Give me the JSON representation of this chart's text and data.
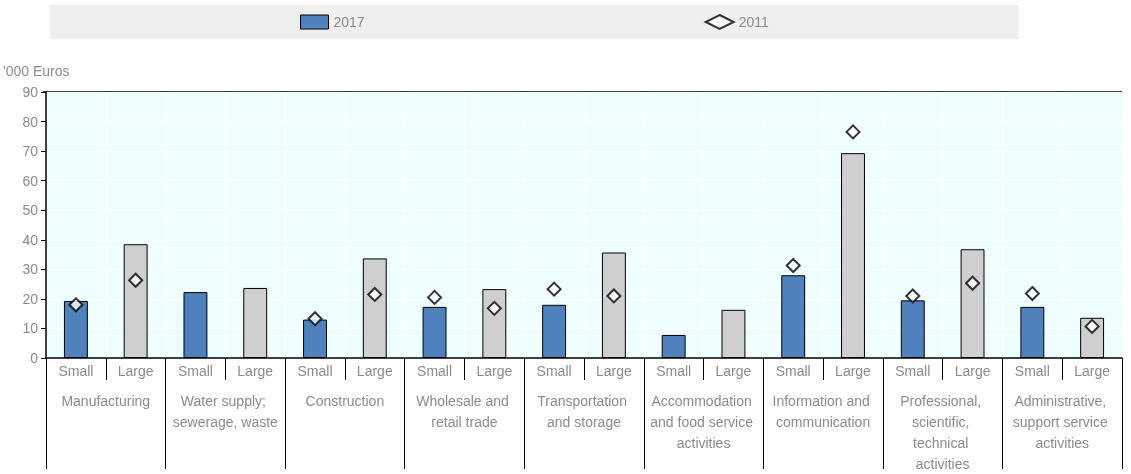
{
  "chart_data": {
    "type": "bar",
    "ylabel": "'000 Euros",
    "categories": [
      "Small",
      "Large",
      "Small",
      "Large",
      "Small",
      "Large",
      "Small",
      "Large",
      "Small",
      "Large",
      "Small",
      "Large",
      "Small",
      "Large",
      "Small",
      "Large",
      "Small",
      "Large"
    ],
    "annotations": [
      "Manufacturing",
      "Water supply; sewerage, waste",
      "Construction",
      "Wholesale and retail trade",
      "Transportation and storage",
      "Accommodation and food service activities",
      "Information and communication",
      "Professional, scientific, technical activities",
      "Administrative, support service activities"
    ],
    "series": [
      {
        "name": "2017",
        "colors": [
          "#4f81bd",
          "#cfcfcf",
          "#4f81bd",
          "#cfcfcf",
          "#4f81bd",
          "#cfcfcf",
          "#4f81bd",
          "#cfcfcf",
          "#4f81bd",
          "#cfcfcf",
          "#4f81bd",
          "#cfcfcf",
          "#4f81bd",
          "#cfcfcf",
          "#4f81bd",
          "#cfcfcf",
          "#4f81bd",
          "#cfcfcf"
        ],
        "values": [
          19.3,
          38.5,
          22.3,
          23.7,
          13,
          33.7,
          17.3,
          23.3,
          18,
          35.7,
          7.8,
          16.3,
          28,
          69.3,
          19.5,
          36.8,
          17.3,
          13.6
        ]
      },
      {
        "name": "2011",
        "type": "scatter",
        "color": "#000000",
        "marker": "diamond",
        "values": [
          18,
          26.3,
          null,
          null,
          13.3,
          21.5,
          20.5,
          16.8,
          23.3,
          21,
          null,
          null,
          31.3,
          76.5,
          21,
          25.3,
          21.8,
          10.7
        ]
      }
    ],
    "ylim": [
      0,
      90
    ],
    "yticks": [
      0,
      10,
      20,
      30,
      40,
      50,
      60,
      70,
      80,
      90
    ],
    "grid": true,
    "legend": "top"
  }
}
